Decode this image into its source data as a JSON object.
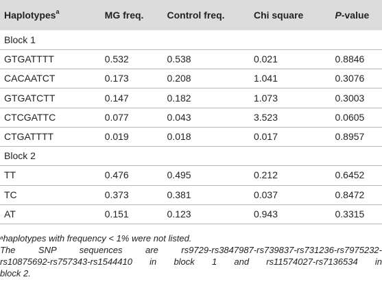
{
  "table": {
    "headers": {
      "haplotypes": "Haplotypes",
      "haplotypes_sup": "a",
      "mg_freq": "MG freq.",
      "control_freq": "Control freq.",
      "chi_square": "Chi square",
      "p_value_italic": "P",
      "p_value_rest": "-value"
    },
    "block1_label": "Block 1",
    "block1_rows": [
      {
        "haplotype": "GTGATTTT",
        "mg": "0.532",
        "control": "0.538",
        "chi": "0.021",
        "p": "0.8846"
      },
      {
        "haplotype": "CACAATCT",
        "mg": "0.173",
        "control": "0.208",
        "chi": "1.041",
        "p": "0.3076"
      },
      {
        "haplotype": "GTGATCTT",
        "mg": "0.147",
        "control": "0.182",
        "chi": "1.073",
        "p": "0.3003"
      },
      {
        "haplotype": "CTCGATTC",
        "mg": "0.077",
        "control": "0.043",
        "chi": "3.523",
        "p": "0.0605"
      },
      {
        "haplotype": "CTGATTTT",
        "mg": "0.019",
        "control": "0.018",
        "chi": "0.017",
        "p": "0.8957"
      }
    ],
    "block2_label": "Block 2",
    "block2_rows": [
      {
        "haplotype": "TT",
        "mg": "0.476",
        "control": "0.495",
        "chi": "0.212",
        "p": "0.6452"
      },
      {
        "haplotype": "TC",
        "mg": "0.373",
        "control": "0.381",
        "chi": "0.037",
        "p": "0.8472"
      },
      {
        "haplotype": "AT",
        "mg": "0.151",
        "control": "0.123",
        "chi": "0.943",
        "p": "0.3315"
      }
    ]
  },
  "footnote": {
    "sup": "a",
    "line1": "haplotypes with frequency < 1% were not listed.",
    "line2": "The SNP sequences are rs9729-rs3847987-rs739837-rs731236-rs7975232-",
    "line3": "rs10875692-rs757343-rs1544410 in block 1 and rs11574027-rs7136534 in",
    "line4": "block 2."
  }
}
